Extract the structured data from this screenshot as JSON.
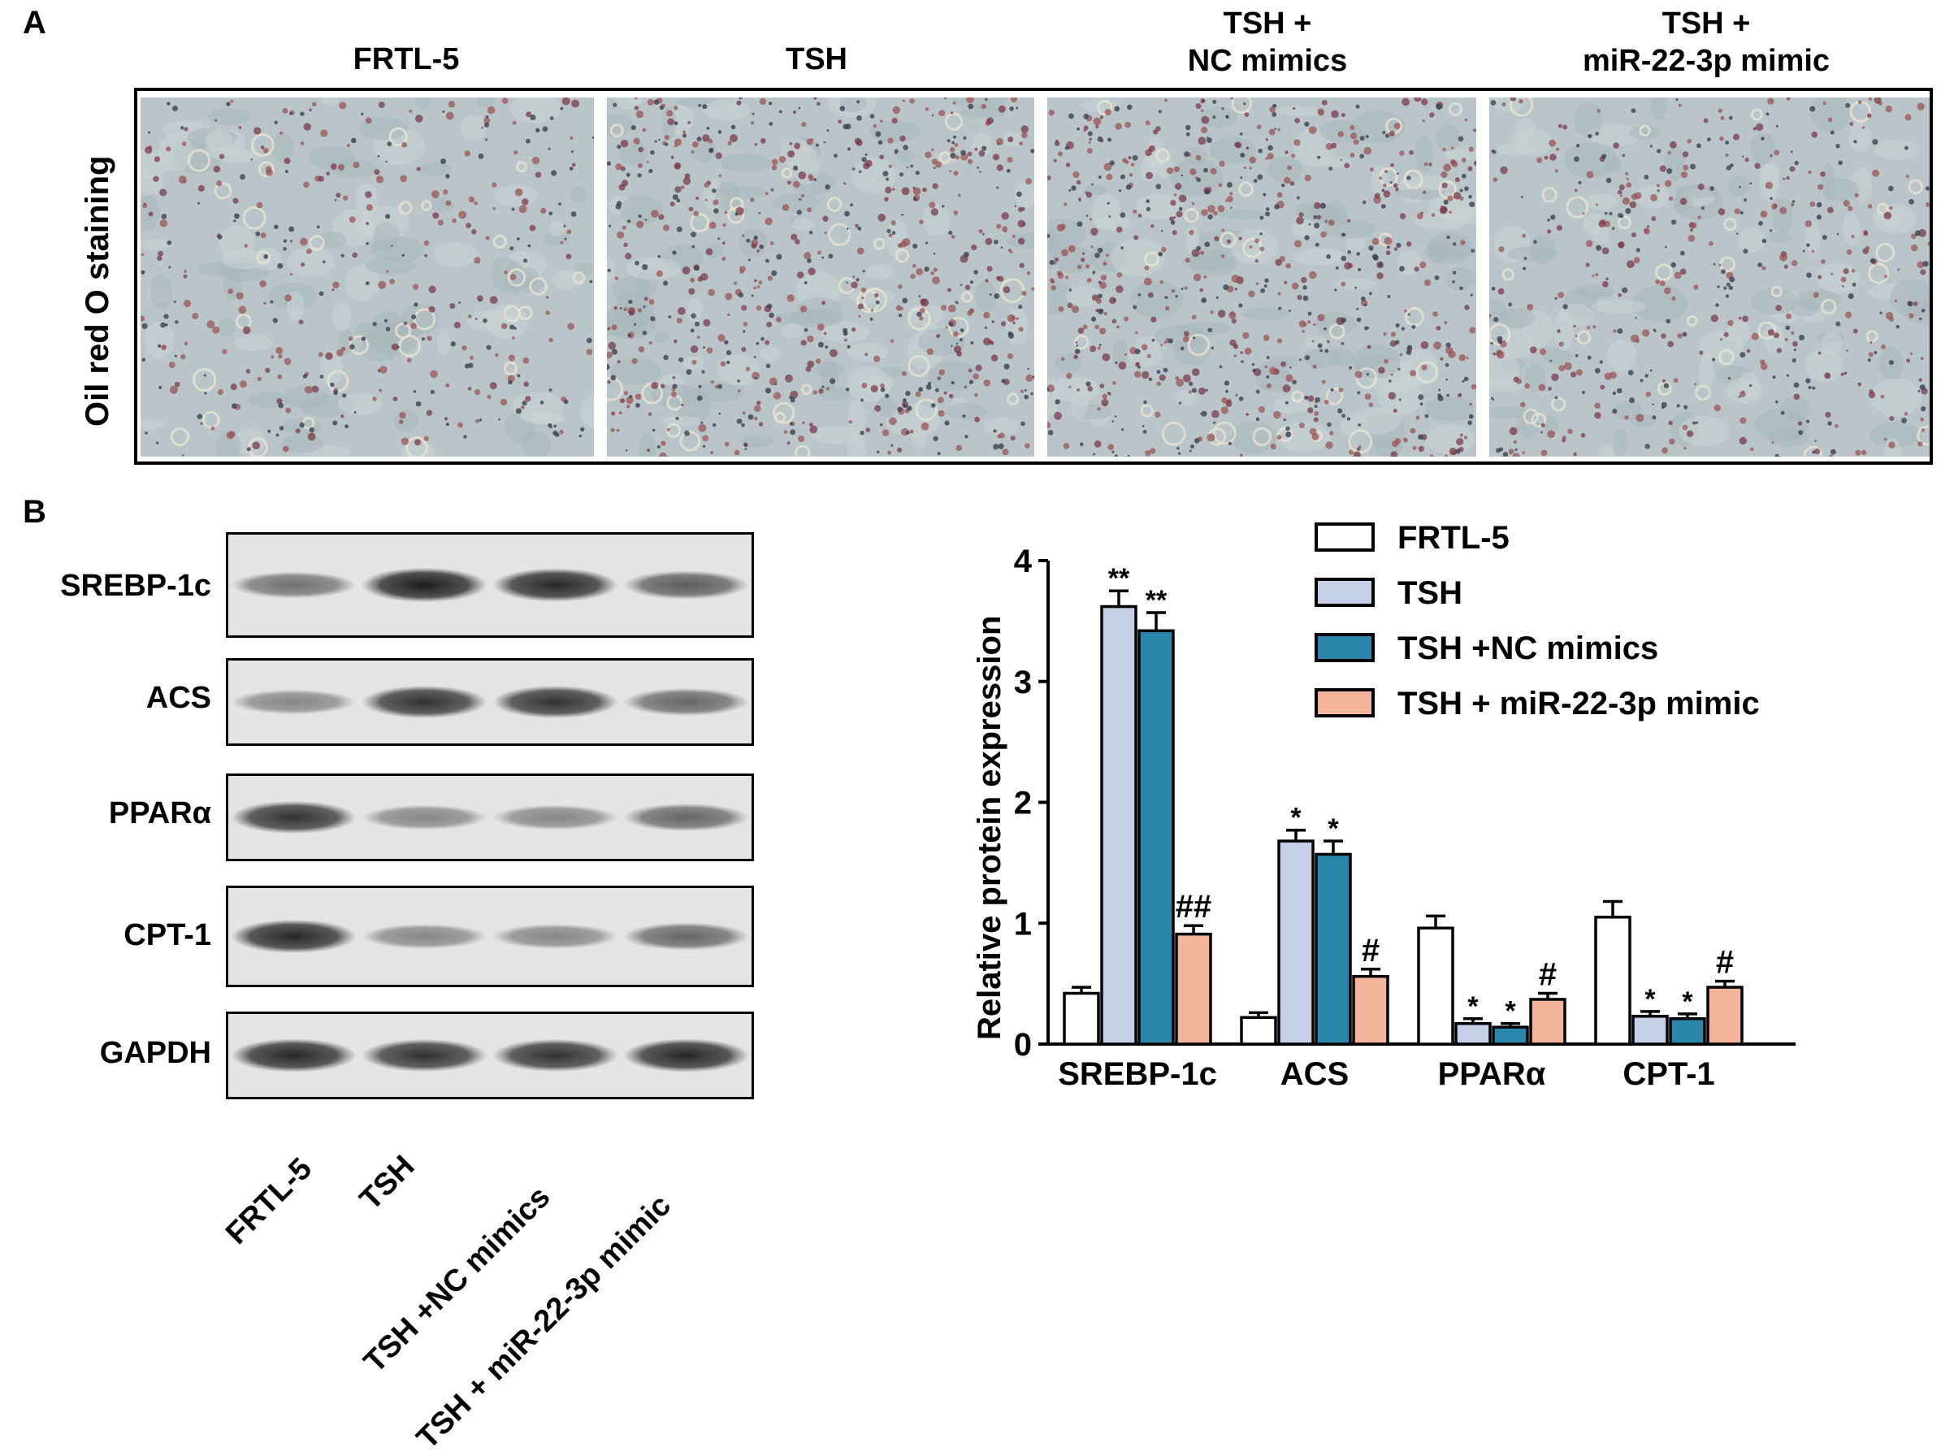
{
  "panel_a": {
    "letter": "A",
    "row_label": "Oil red O staining",
    "columns": [
      {
        "line1": "FRTL-5",
        "line2": ""
      },
      {
        "line1": "TSH",
        "line2": ""
      },
      {
        "line1": "TSH +",
        "line2": "NC mimics"
      },
      {
        "line1": "TSH +",
        "line2": "miR-22-3p mimic"
      }
    ]
  },
  "panel_b": {
    "letter": "B",
    "blots": [
      {
        "label": "SREBP-1c",
        "intensity": [
          0.55,
          0.95,
          0.9,
          0.65
        ]
      },
      {
        "label": "ACS",
        "intensity": [
          0.45,
          0.85,
          0.85,
          0.6
        ]
      },
      {
        "label": "PPARα",
        "intensity": [
          0.85,
          0.45,
          0.45,
          0.6
        ]
      },
      {
        "label": "CPT-1",
        "intensity": [
          0.9,
          0.45,
          0.45,
          0.6
        ]
      },
      {
        "label": "GAPDH",
        "intensity": [
          0.9,
          0.85,
          0.85,
          0.9
        ]
      }
    ],
    "lanes": [
      "FRTL-5",
      "TSH",
      "TSH +NC mimics",
      "TSH + miR-22-3p mimic"
    ]
  },
  "chart_data": {
    "type": "bar",
    "categories": [
      "SREBP-1c",
      "ACS",
      "PPARα",
      "CPT-1"
    ],
    "ylabel": "Relative protein expression",
    "ylim": [
      0,
      4
    ],
    "yticks": [
      "0",
      "1",
      "2",
      "3",
      "4"
    ],
    "series": [
      {
        "name": "FRTL-5",
        "color": "#ffffff",
        "values": [
          0.42,
          0.22,
          0.96,
          1.05
        ],
        "errors": [
          0.05,
          0.04,
          0.1,
          0.13
        ],
        "marks": [
          "",
          "",
          "",
          ""
        ]
      },
      {
        "name": "TSH",
        "color": "#c5cfe8",
        "values": [
          3.62,
          1.68,
          0.17,
          0.23
        ],
        "errors": [
          0.13,
          0.09,
          0.04,
          0.04
        ],
        "marks": [
          "**",
          "*",
          "*",
          "*"
        ]
      },
      {
        "name": "TSH +NC mimics",
        "color": "#2a86ad",
        "values": [
          3.42,
          1.57,
          0.14,
          0.21
        ],
        "errors": [
          0.15,
          0.11,
          0.03,
          0.04
        ],
        "marks": [
          "**",
          "*",
          "*",
          "*"
        ]
      },
      {
        "name": "TSH + miR-22-3p mimic",
        "color": "#f4b49c",
        "values": [
          0.91,
          0.56,
          0.37,
          0.47
        ],
        "errors": [
          0.07,
          0.06,
          0.05,
          0.05
        ],
        "marks": [
          "##",
          "#",
          "#",
          "#"
        ]
      }
    ]
  }
}
